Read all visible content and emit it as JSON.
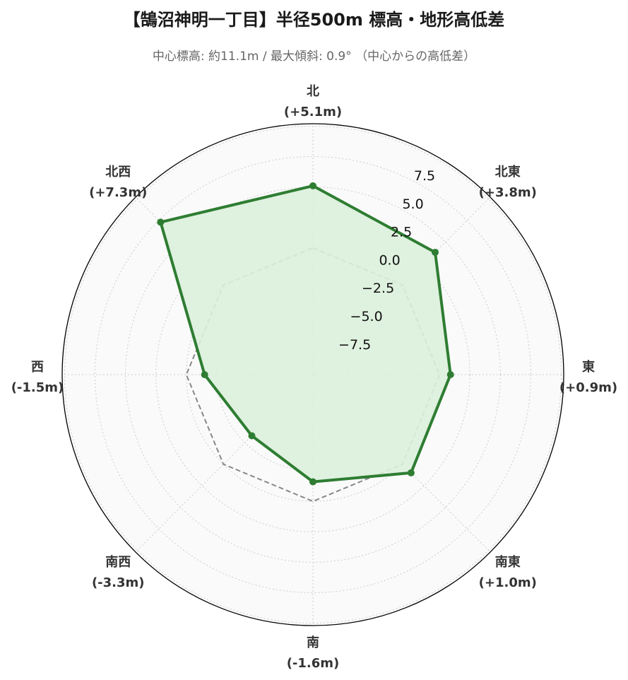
{
  "title": "【鵠沼神明一丁目】半径500m 標高・地形高低差",
  "subtitle": "中心標高: 約11.1m / 最大傾斜: 0.9° （中心からの高低差）",
  "colors": {
    "series": "#2e7d32",
    "fill": "#dcefdc",
    "reference": "#888888",
    "background": "#fafafa",
    "grid": "#cccccc"
  },
  "chart_data": {
    "type": "radar",
    "categories": [
      "北",
      "北東",
      "東",
      "南東",
      "南",
      "南西",
      "西",
      "北西"
    ],
    "category_labels": [
      [
        "北",
        "(+5.1m)"
      ],
      [
        "北東",
        "(+3.8m)"
      ],
      [
        "東",
        "(+0.9m)"
      ],
      [
        "南東",
        "(+1.0m)"
      ],
      [
        "南",
        "(-1.6m)"
      ],
      [
        "南西",
        "(-3.3m)"
      ],
      [
        "西",
        "(-1.5m)"
      ],
      [
        "北西",
        "(+7.3m)"
      ]
    ],
    "series": [
      {
        "values": [
          5.1,
          3.8,
          0.9,
          1.0,
          -1.6,
          -3.3,
          -1.5,
          7.3
        ]
      }
    ],
    "reference_line": {
      "value": 0
    },
    "rlim": [
      -10.4,
      10.2
    ],
    "rticks": [
      -7.5,
      -5.0,
      -2.5,
      0.0,
      2.5,
      5.0,
      7.5
    ],
    "rtick_labels": [
      "−7.5",
      "−5.0",
      "−2.5",
      "0.0",
      "2.5",
      "5.0",
      "7.5"
    ],
    "grid": true
  }
}
